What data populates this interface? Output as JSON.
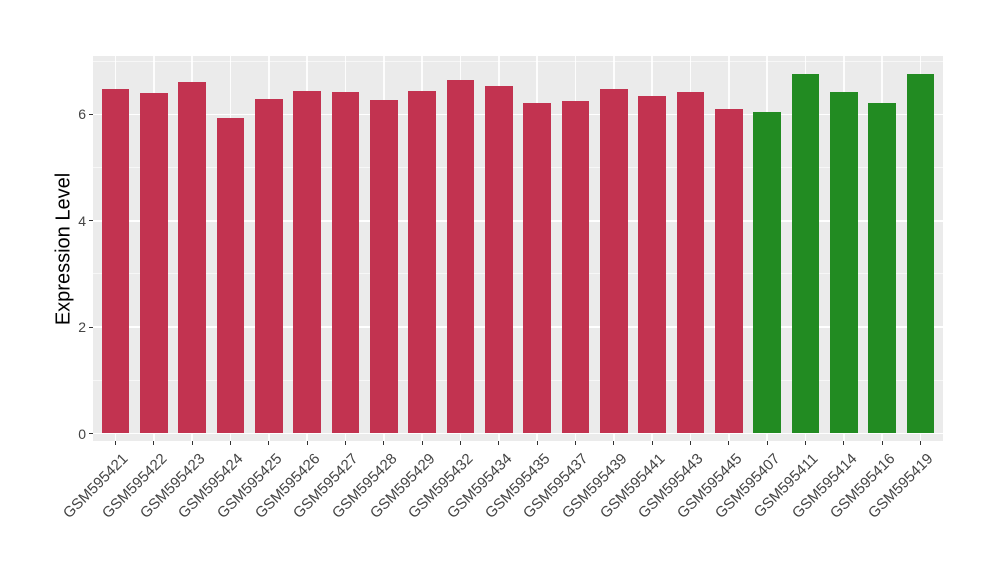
{
  "chart_data": {
    "type": "bar",
    "title": "",
    "xlabel": "",
    "ylabel": "Expression Level",
    "ylim": [
      0,
      7.1
    ],
    "yticks": [
      0,
      2,
      4,
      6
    ],
    "minor_ticks": [
      1,
      3,
      5,
      7
    ],
    "grid": true,
    "legend": false,
    "categories": [
      "GSM595421",
      "GSM595422",
      "GSM595423",
      "GSM595424",
      "GSM595425",
      "GSM595426",
      "GSM595427",
      "GSM595428",
      "GSM595429",
      "GSM595432",
      "GSM595434",
      "GSM595435",
      "GSM595437",
      "GSM595439",
      "GSM595441",
      "GSM595443",
      "GSM595445",
      "GSM595407",
      "GSM595411",
      "GSM595414",
      "GSM595416",
      "GSM595419"
    ],
    "values": [
      6.47,
      6.4,
      6.61,
      5.94,
      6.3,
      6.45,
      6.43,
      6.28,
      6.45,
      6.64,
      6.53,
      6.21,
      6.26,
      6.47,
      6.35,
      6.42,
      6.11,
      6.05,
      6.76,
      6.42,
      6.22,
      6.76
    ],
    "bar_colors": [
      "#C23350",
      "#C23350",
      "#C23350",
      "#C23350",
      "#C23350",
      "#C23350",
      "#C23350",
      "#C23350",
      "#C23350",
      "#C23350",
      "#C23350",
      "#C23350",
      "#C23350",
      "#C23350",
      "#C23350",
      "#C23350",
      "#C23350",
      "#228B22",
      "#228B22",
      "#228B22",
      "#228B22",
      "#228B22"
    ],
    "palette": {
      "crimson_group": "#C23350",
      "green_group": "#228B22",
      "panel_background": "#EBEBEB",
      "gridline": "#FFFFFF",
      "tick_mark": "#333333",
      "tick_label": "#444444",
      "axis_title": "#000000"
    }
  }
}
